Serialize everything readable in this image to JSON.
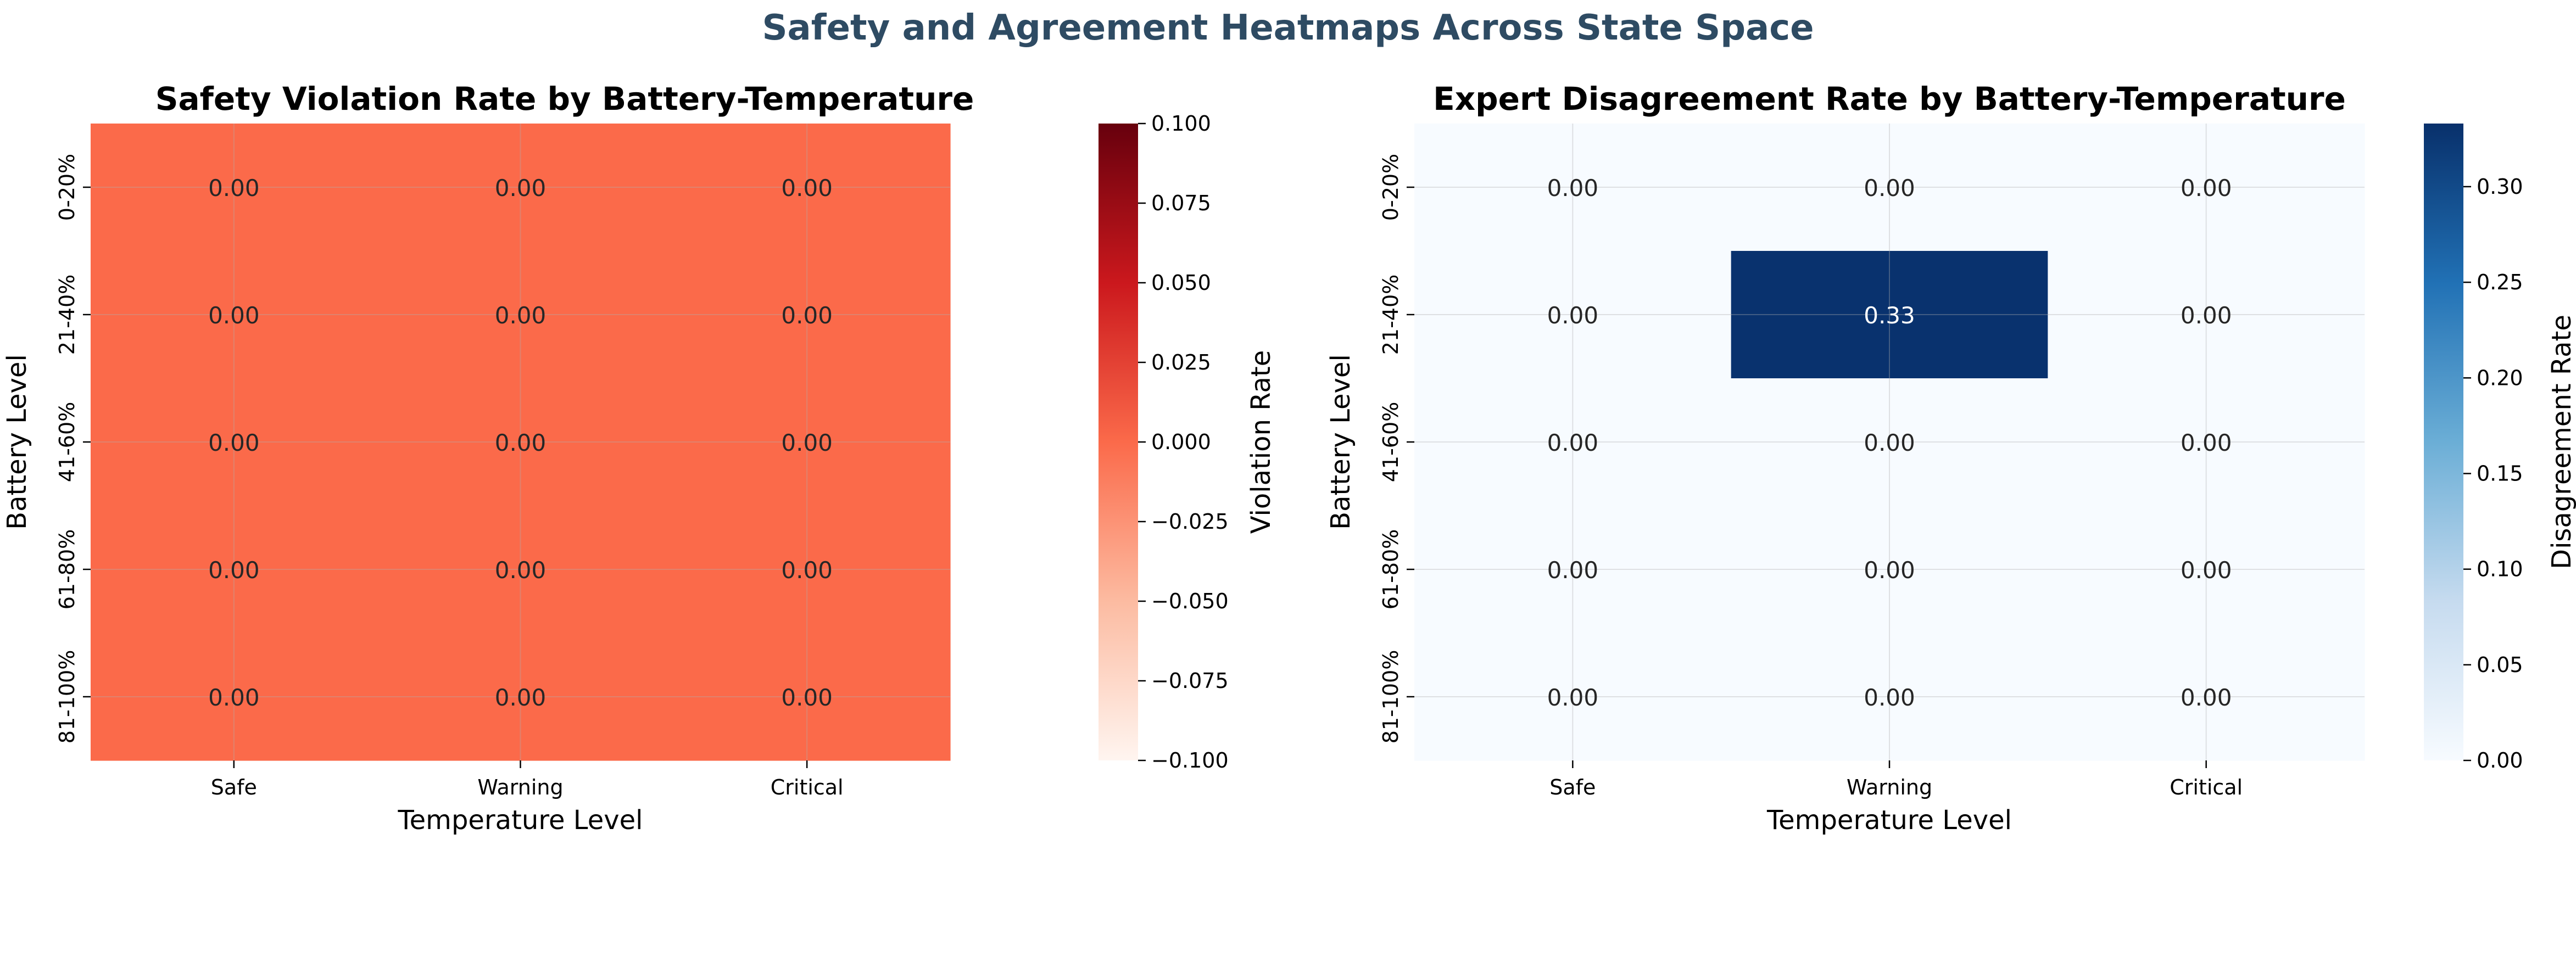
{
  "figure_title": "Safety and Agreement Heatmaps Across State Space",
  "title_color": "#2e4b63",
  "chart_data": [
    {
      "type": "heatmap",
      "title": "Safety Violation Rate by Battery-Temperature",
      "xlabel": "Temperature Level",
      "ylabel": "Battery Level",
      "x_categories": [
        "Safe",
        "Warning",
        "Critical"
      ],
      "y_categories": [
        "0-20%",
        "21-40%",
        "41-60%",
        "61-80%",
        "81-100%"
      ],
      "values": [
        [
          0.0,
          0.0,
          0.0
        ],
        [
          0.0,
          0.0,
          0.0
        ],
        [
          0.0,
          0.0,
          0.0
        ],
        [
          0.0,
          0.0,
          0.0
        ],
        [
          0.0,
          0.0,
          0.0
        ]
      ],
      "annotations": [
        [
          "0.00",
          "0.00",
          "0.00"
        ],
        [
          "0.00",
          "0.00",
          "0.00"
        ],
        [
          "0.00",
          "0.00",
          "0.00"
        ],
        [
          "0.00",
          "0.00",
          "0.00"
        ],
        [
          "0.00",
          "0.00",
          "0.00"
        ]
      ],
      "colormap": "Reds",
      "colormap_stops": [
        "#fff5f0",
        "#fcbba1",
        "#fb6a4a",
        "#cb181d",
        "#67000d"
      ],
      "vmin": -0.1,
      "vmax": 0.1,
      "colorbar_label": "Violation Rate",
      "colorbar_ticks": [
        "0.100",
        "0.075",
        "0.050",
        "0.025",
        "0.000",
        "−0.025",
        "−0.050",
        "−0.075",
        "−0.100"
      ],
      "colorbar_tick_values": [
        0.1,
        0.075,
        0.05,
        0.025,
        0.0,
        -0.025,
        -0.05,
        -0.075,
        -0.1
      ],
      "grid": true
    },
    {
      "type": "heatmap",
      "title": "Expert Disagreement Rate by Battery-Temperature",
      "xlabel": "Temperature Level",
      "ylabel": "Battery Level",
      "x_categories": [
        "Safe",
        "Warning",
        "Critical"
      ],
      "y_categories": [
        "0-20%",
        "21-40%",
        "41-60%",
        "61-80%",
        "81-100%"
      ],
      "values": [
        [
          0.0,
          0.0,
          0.0
        ],
        [
          0.0,
          0.33,
          0.0
        ],
        [
          0.0,
          0.0,
          0.0
        ],
        [
          0.0,
          0.0,
          0.0
        ],
        [
          0.0,
          0.0,
          0.0
        ]
      ],
      "annotations": [
        [
          "0.00",
          "0.00",
          "0.00"
        ],
        [
          "0.00",
          "0.33",
          "0.00"
        ],
        [
          "0.00",
          "0.00",
          "0.00"
        ],
        [
          "0.00",
          "0.00",
          "0.00"
        ],
        [
          "0.00",
          "0.00",
          "0.00"
        ]
      ],
      "colormap": "Blues",
      "colormap_stops": [
        "#f7fbff",
        "#c6dbef",
        "#6baed6",
        "#2171b5",
        "#08306b"
      ],
      "vmin": 0.0,
      "vmax": 0.333,
      "colorbar_label": "Disagreement Rate",
      "colorbar_ticks": [
        "0.30",
        "0.25",
        "0.20",
        "0.15",
        "0.10",
        "0.05",
        "0.00"
      ],
      "colorbar_tick_values": [
        0.3,
        0.25,
        0.2,
        0.15,
        0.1,
        0.05,
        0.0
      ],
      "grid": true
    }
  ]
}
